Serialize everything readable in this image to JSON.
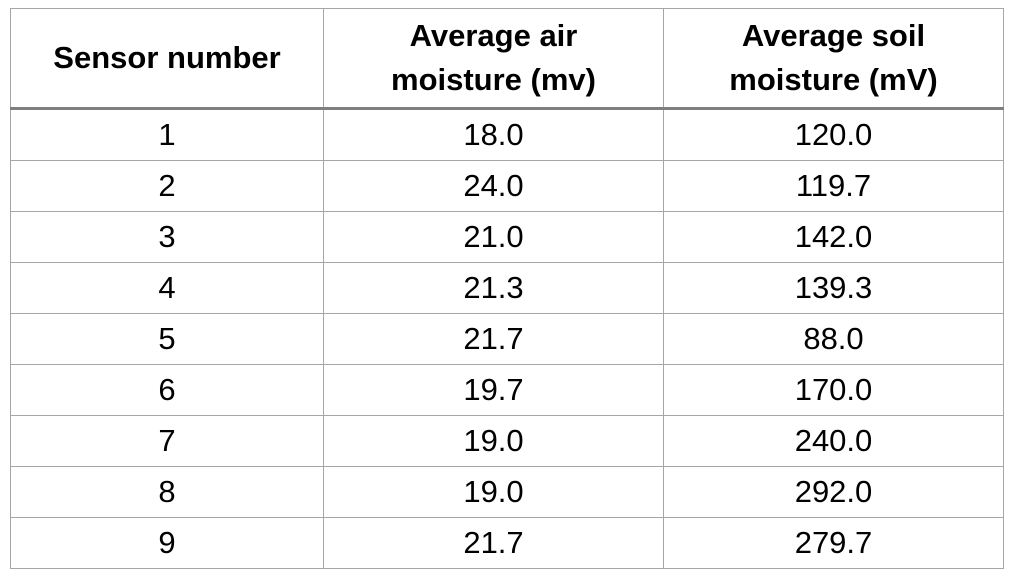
{
  "table": {
    "headers": [
      "Sensor number",
      "Average air\nmoisture (mv)",
      "Average soil\nmoisture (mV)"
    ],
    "rows": [
      [
        "1",
        "18.0",
        "120.0"
      ],
      [
        "2",
        "24.0",
        "119.7"
      ],
      [
        "3",
        "21.0",
        "142.0"
      ],
      [
        "4",
        "21.3",
        "139.3"
      ],
      [
        "5",
        "21.7",
        "88.0"
      ],
      [
        "6",
        "19.7",
        "170.0"
      ],
      [
        "7",
        "19.0",
        "240.0"
      ],
      [
        "8",
        "19.0",
        "292.0"
      ],
      [
        "9",
        "21.7",
        "279.7"
      ]
    ]
  }
}
